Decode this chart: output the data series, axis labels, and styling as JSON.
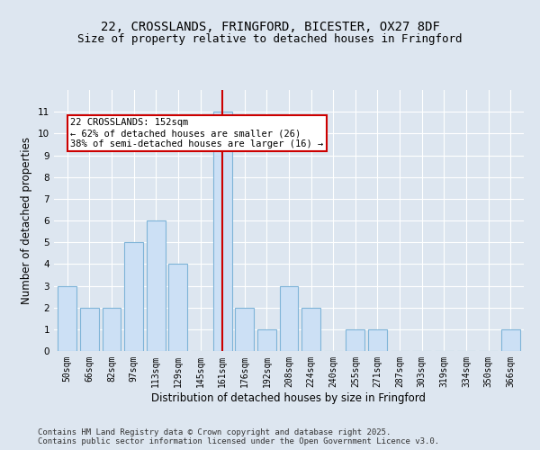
{
  "title_line1": "22, CROSSLANDS, FRINGFORD, BICESTER, OX27 8DF",
  "title_line2": "Size of property relative to detached houses in Fringford",
  "xlabel": "Distribution of detached houses by size in Fringford",
  "ylabel": "Number of detached properties",
  "categories": [
    "50sqm",
    "66sqm",
    "82sqm",
    "97sqm",
    "113sqm",
    "129sqm",
    "145sqm",
    "161sqm",
    "176sqm",
    "192sqm",
    "208sqm",
    "224sqm",
    "240sqm",
    "255sqm",
    "271sqm",
    "287sqm",
    "303sqm",
    "319sqm",
    "334sqm",
    "350sqm",
    "366sqm"
  ],
  "values": [
    3,
    2,
    2,
    5,
    6,
    4,
    0,
    11,
    2,
    1,
    3,
    2,
    0,
    1,
    1,
    0,
    0,
    0,
    0,
    0,
    1
  ],
  "bar_color": "#cce0f5",
  "bar_edge_color": "#7fb4d8",
  "vline_index": 7,
  "vline_color": "#cc0000",
  "annotation_text": "22 CROSSLANDS: 152sqm\n← 62% of detached houses are smaller (26)\n38% of semi-detached houses are larger (16) →",
  "annotation_box_color": "#ffffff",
  "annotation_box_edge": "#cc0000",
  "ylim": [
    0,
    12
  ],
  "yticks": [
    0,
    1,
    2,
    3,
    4,
    5,
    6,
    7,
    8,
    9,
    10,
    11
  ],
  "background_color": "#dde6f0",
  "plot_background": "#dde6f0",
  "footer_line1": "Contains HM Land Registry data © Crown copyright and database right 2025.",
  "footer_line2": "Contains public sector information licensed under the Open Government Licence v3.0.",
  "title_fontsize": 10,
  "subtitle_fontsize": 9,
  "axis_label_fontsize": 8.5,
  "tick_fontsize": 7,
  "annotation_fontsize": 7.5,
  "footer_fontsize": 6.5
}
